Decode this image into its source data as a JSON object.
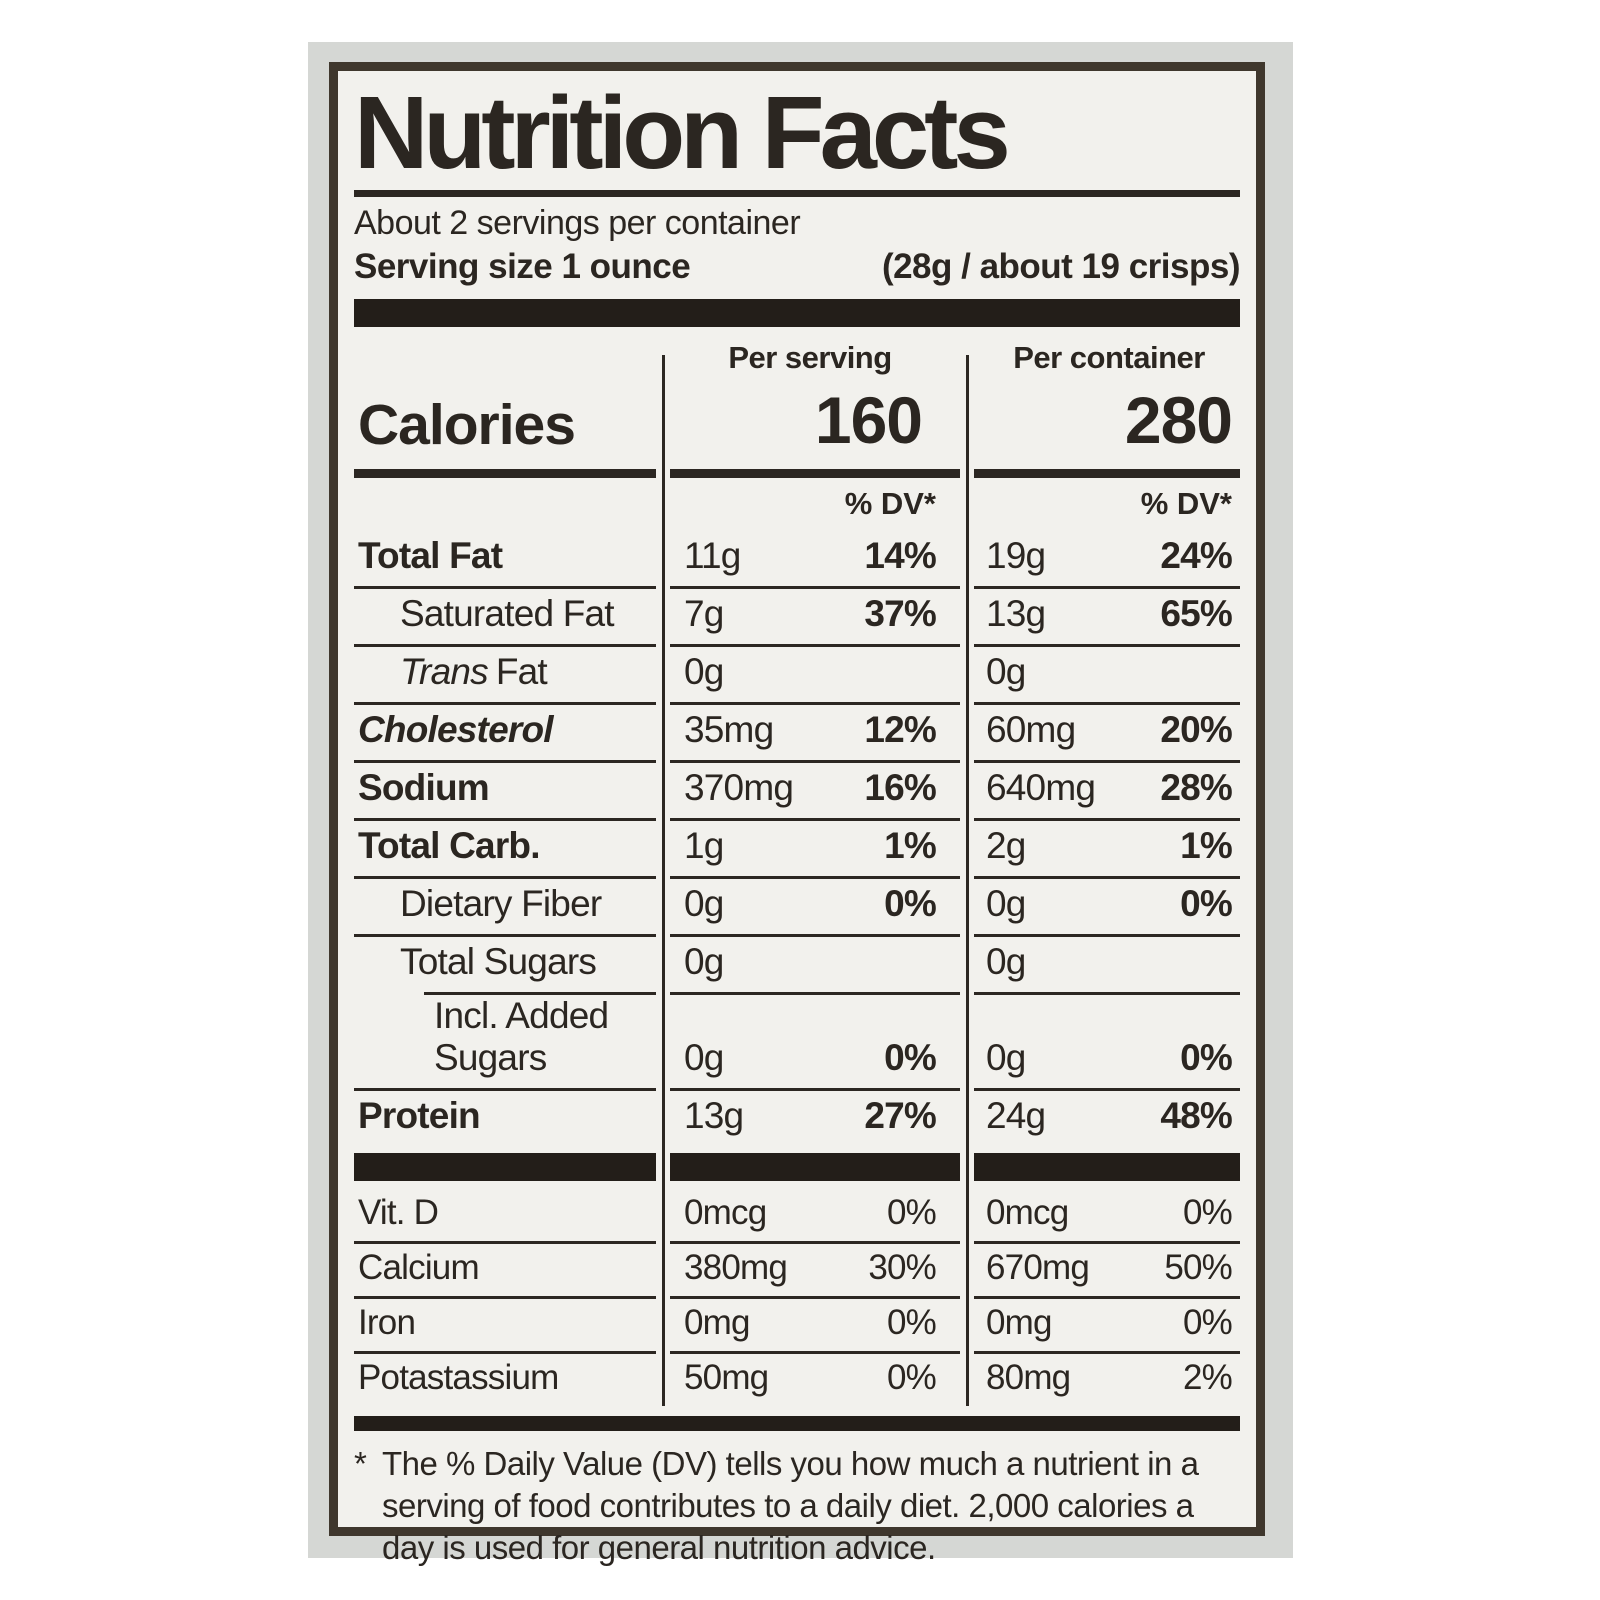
{
  "colors": {
    "page_background": "#ffffff",
    "photo_background": "#d5d7d4",
    "label_background": "#f2f1ed",
    "ink": "#2b2621",
    "border": "#3f372d"
  },
  "label": {
    "title": "Nutrition Facts",
    "servings_per_container": "About 2 servings per container",
    "serving_size": "Serving size 1 ounce",
    "serving_size_detail": "(28g / about 19 crisps)",
    "column_headers": {
      "serving": "Per serving",
      "container": "Per container"
    },
    "calories": {
      "name": "Calories",
      "per_serving": "160",
      "per_container": "280"
    },
    "dv_header": "% DV*",
    "rows": [
      {
        "name": "Total Fat",
        "serving_amount": "11g",
        "serving_dv": "14%",
        "container_amount": "19g",
        "container_dv": "24%"
      },
      {
        "name": "Saturated Fat",
        "serving_amount": "7g",
        "serving_dv": "37%",
        "container_amount": "13g",
        "container_dv": "65%"
      },
      {
        "prefix": "Trans",
        "name": "Fat",
        "serving_amount": "0g",
        "serving_dv": "",
        "container_amount": "0g",
        "container_dv": ""
      },
      {
        "name": "Cholesterol",
        "serving_amount": "35mg",
        "serving_dv": "12%",
        "container_amount": "60mg",
        "container_dv": "20%"
      },
      {
        "name": "Sodium",
        "serving_amount": "370mg",
        "serving_dv": "16%",
        "container_amount": "640mg",
        "container_dv": "28%"
      },
      {
        "name": "Total Carb.",
        "serving_amount": "1g",
        "serving_dv": "1%",
        "container_amount": "2g",
        "container_dv": "1%"
      },
      {
        "name": "Dietary Fiber",
        "serving_amount": "0g",
        "serving_dv": "0%",
        "container_amount": "0g",
        "container_dv": "0%"
      },
      {
        "name": "Total Sugars",
        "serving_amount": "0g",
        "serving_dv": "",
        "container_amount": "0g",
        "container_dv": ""
      },
      {
        "name": "Incl. Added Sugars",
        "serving_amount": "0g",
        "serving_dv": "0%",
        "container_amount": "0g",
        "container_dv": "0%"
      },
      {
        "name": "Protein",
        "serving_amount": "13g",
        "serving_dv": "27%",
        "container_amount": "24g",
        "container_dv": "48%"
      }
    ],
    "vitamins": [
      {
        "name": "Vit. D",
        "serving_amount": "0mcg",
        "serving_dv": "0%",
        "container_amount": "0mcg",
        "container_dv": "0%"
      },
      {
        "name": "Calcium",
        "serving_amount": "380mg",
        "serving_dv": "30%",
        "container_amount": "670mg",
        "container_dv": "50%"
      },
      {
        "name": "Iron",
        "serving_amount": "0mg",
        "serving_dv": "0%",
        "container_amount": "0mg",
        "container_dv": "0%"
      },
      {
        "name": "Potastassium",
        "serving_amount": "50mg",
        "serving_dv": "0%",
        "container_amount": "80mg",
        "container_dv": "2%"
      }
    ],
    "footnote": {
      "star": "*",
      "lines": [
        "The % Daily Value (DV) tells you how much a nutrient in a",
        "serving of food contributes to a daily diet. 2,000 calories a",
        "day is used for general nutrition advice."
      ]
    }
  }
}
